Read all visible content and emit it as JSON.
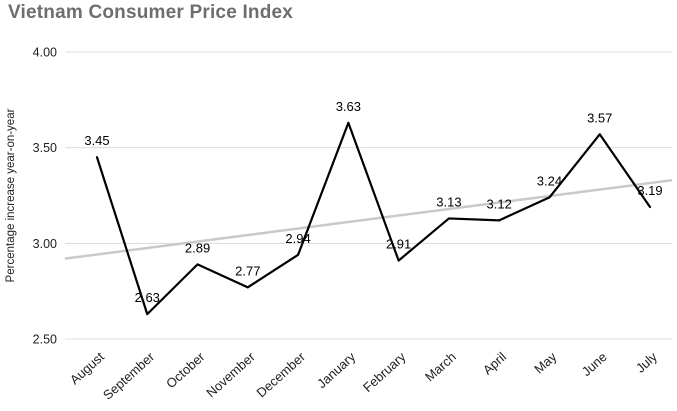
{
  "page": {
    "title": "Vietnam Consumer Price Index"
  },
  "chart_data": {
    "type": "line",
    "title": "Vietnam Consumer Price Index",
    "xlabel": "",
    "ylabel": "Percentage increase year-on-year",
    "categories": [
      "August",
      "September",
      "October",
      "November",
      "December",
      "January",
      "February",
      "March",
      "April",
      "May",
      "June",
      "July"
    ],
    "values": [
      3.45,
      2.63,
      2.89,
      2.77,
      2.94,
      3.63,
      2.91,
      3.13,
      3.12,
      3.24,
      3.57,
      3.19
    ],
    "ylim": [
      2.5,
      4.0
    ],
    "yticks": [
      4.0,
      3.5,
      3.0,
      2.5
    ],
    "grid": true,
    "legend_position": "none",
    "data_labels": true,
    "series_color": "#000000",
    "gridline_color": "#dcdcdc",
    "label_color": "#000000",
    "axis_text_color": "#202124",
    "title_color": "#6e6e6e",
    "trendline": {
      "start_value": 2.92,
      "end_value": 3.33,
      "color": "#c9c9c9"
    }
  }
}
